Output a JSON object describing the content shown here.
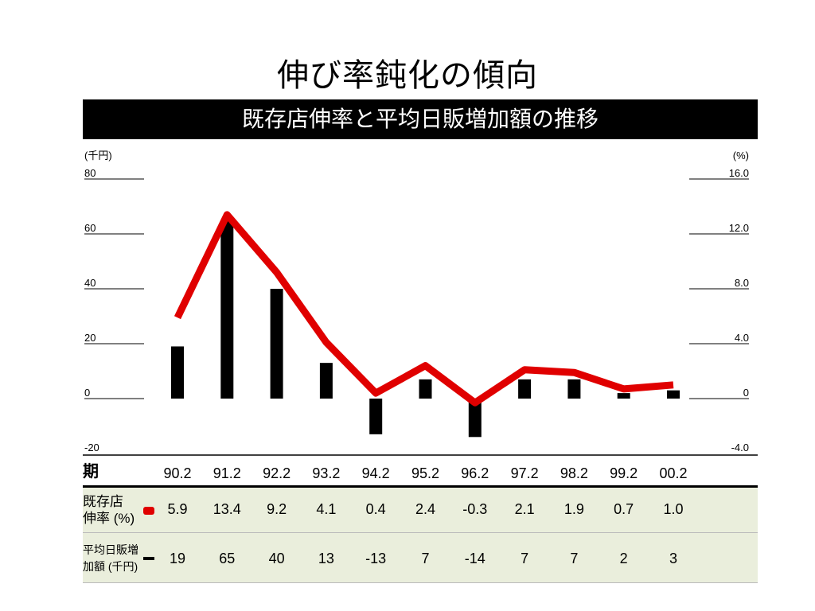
{
  "title": "伸び率鈍化の傾向",
  "banner": "既存店伸率と平均日販増加額の推移",
  "chart_data": {
    "type": "bar+line",
    "categories": [
      "90.2",
      "91.2",
      "92.2",
      "93.2",
      "94.2",
      "95.2",
      "96.2",
      "97.2",
      "98.2",
      "99.2",
      "00.2"
    ],
    "series": [
      {
        "name": "平均日販増加額 (千円)",
        "type": "bar",
        "axis": "left",
        "color": "#000000",
        "values": [
          19,
          65,
          40,
          13,
          -13,
          7,
          -14,
          7,
          7,
          2,
          3
        ]
      },
      {
        "name": "既存店伸率 (%)",
        "type": "line",
        "axis": "right",
        "color": "#e00000",
        "values": [
          5.9,
          13.4,
          9.2,
          4.1,
          0.4,
          2.4,
          -0.3,
          2.1,
          1.9,
          0.7,
          1.0
        ]
      }
    ],
    "left_axis": {
      "unit": "(千円)",
      "ylim": [
        -20,
        80
      ],
      "ticks": [
        "80",
        "60",
        "40",
        "20",
        "0",
        "-20"
      ]
    },
    "right_axis": {
      "unit": "(%)",
      "ylim": [
        -4.0,
        16.0
      ],
      "ticks": [
        "16.0",
        "12.0",
        "8.0",
        "4.0",
        "0",
        "-4.0"
      ]
    }
  },
  "table": {
    "period_label": "期",
    "rate_label_1": "既存店",
    "rate_label_2": "伸率 (%)",
    "amount_label_1": "平均日販増",
    "amount_label_2": "加額 (千円)",
    "periods": [
      "90.2",
      "91.2",
      "92.2",
      "93.2",
      "94.2",
      "95.2",
      "96.2",
      "97.2",
      "98.2",
      "99.2",
      "00.2"
    ],
    "rates": [
      "5.9",
      "13.4",
      "9.2",
      "4.1",
      "0.4",
      "2.4",
      "-0.3",
      "2.1",
      "1.9",
      "0.7",
      "1.0"
    ],
    "amounts": [
      "19",
      "65",
      "40",
      "13",
      "-13",
      "7",
      "-14",
      "7",
      "7",
      "2",
      "3"
    ]
  }
}
